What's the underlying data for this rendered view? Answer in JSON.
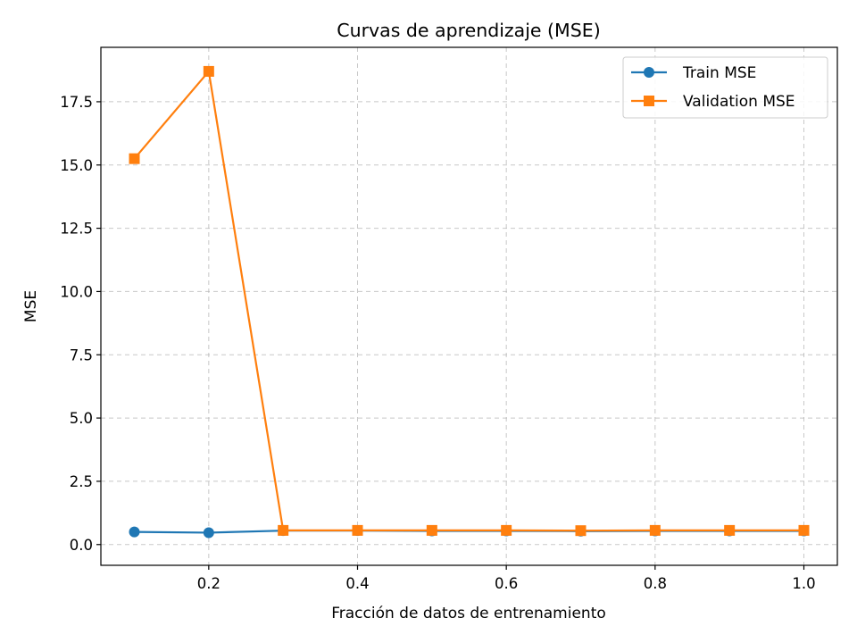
{
  "chart_data": {
    "type": "line",
    "title": "Curvas de aprendizaje (MSE)",
    "xlabel": "Fracción de datos de entrenamiento",
    "ylabel": "MSE",
    "xlim": [
      0.055,
      1.045
    ],
    "ylim": [
      -0.82,
      19.65
    ],
    "x_ticks": [
      0.2,
      0.4,
      0.6,
      0.8,
      1.0
    ],
    "x_tick_labels": [
      "0.2",
      "0.4",
      "0.6",
      "0.8",
      "1.0"
    ],
    "y_ticks": [
      0.0,
      2.5,
      5.0,
      7.5,
      10.0,
      12.5,
      15.0,
      17.5
    ],
    "y_tick_labels": [
      "0.0",
      "2.5",
      "5.0",
      "7.5",
      "10.0",
      "12.5",
      "15.0",
      "17.5"
    ],
    "grid": true,
    "legend_position": "top-right",
    "x": [
      0.1,
      0.2,
      0.3,
      0.4,
      0.5,
      0.6,
      0.7,
      0.8,
      0.9,
      1.0
    ],
    "series": [
      {
        "name": "Train MSE",
        "color": "#1f77b4",
        "marker": "circle",
        "values": [
          0.5,
          0.47,
          0.55,
          0.55,
          0.54,
          0.54,
          0.53,
          0.54,
          0.54,
          0.54
        ]
      },
      {
        "name": "Validation MSE",
        "color": "#ff7f0e",
        "marker": "square",
        "values": [
          15.25,
          18.7,
          0.56,
          0.56,
          0.56,
          0.56,
          0.55,
          0.56,
          0.56,
          0.56
        ]
      }
    ]
  }
}
